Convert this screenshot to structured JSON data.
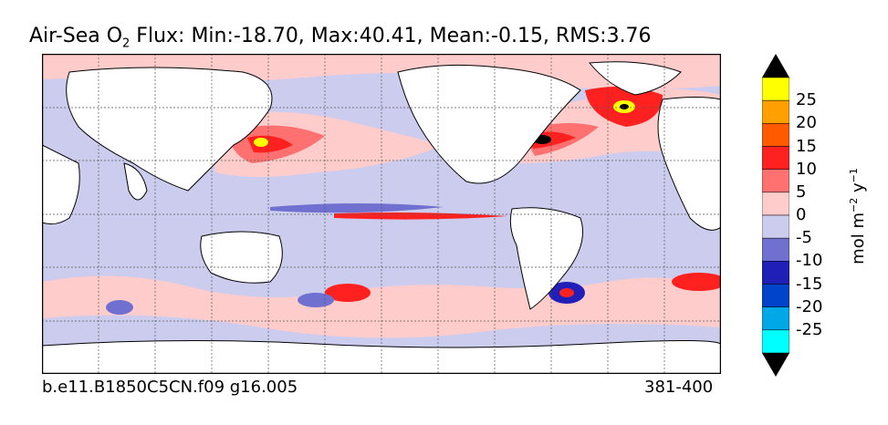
{
  "title": {
    "prefix": "Air-Sea O",
    "subscript": "2",
    "suffix": " Flux: Min:-18.70, Max:40.41, Mean:-0.15, RMS:3.76"
  },
  "footer": {
    "case_name": "b.e11.B1850C5CN.f09 g16.005",
    "years": "381-400"
  },
  "colorbar": {
    "ticks": [
      "25",
      "20",
      "15",
      "10",
      "5",
      "0",
      "-5",
      "-10",
      "-15",
      "-20",
      "-25"
    ],
    "unit_html_parts": [
      "mol m",
      "−2",
      " y",
      "−1"
    ],
    "colors_top_to_bottom": [
      "#ffff00",
      "#ffa000",
      "#ff5a00",
      "#ff2020",
      "#ff7070",
      "#ffcccc",
      "#ccccee",
      "#7070d0",
      "#2020b8",
      "#0044cc",
      "#00a8e8",
      "#00ffff"
    ],
    "extend_color_high": "#000000",
    "extend_color_low": "#000000"
  },
  "map": {
    "background_color": "#ccccee",
    "land_color": "#ffffff",
    "gridlines": "dashed"
  }
}
